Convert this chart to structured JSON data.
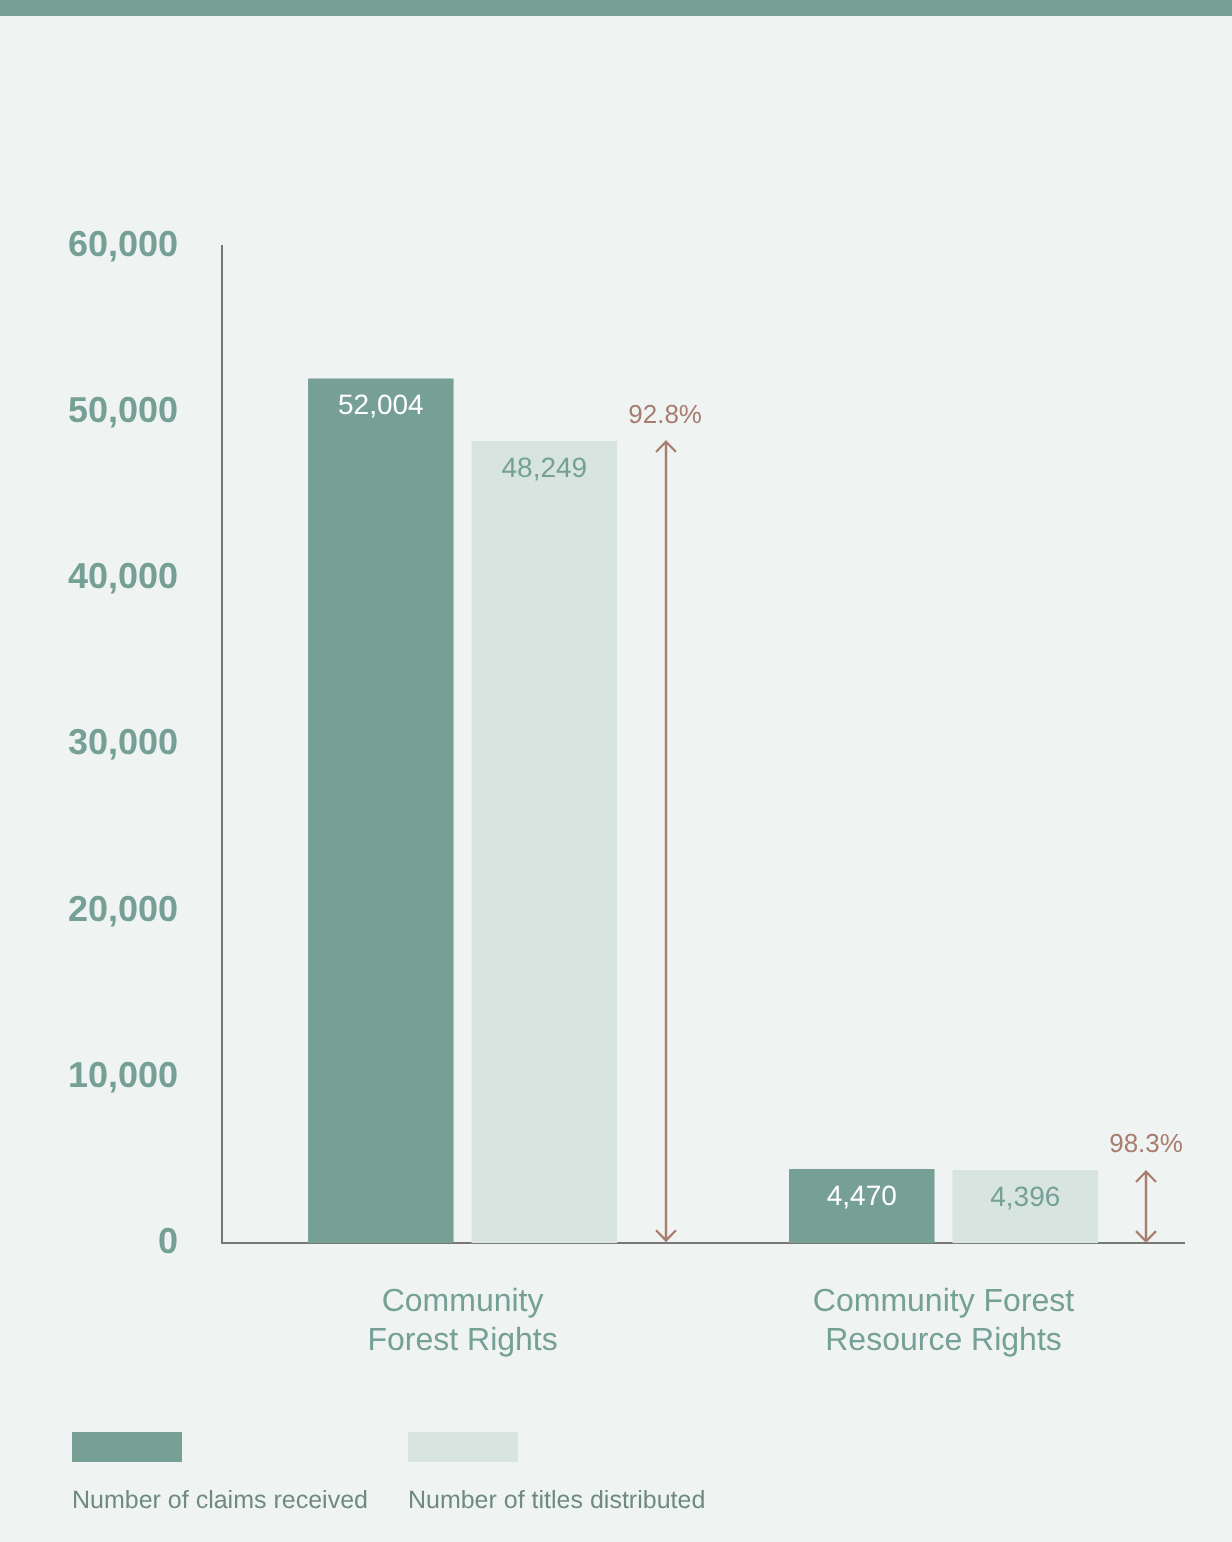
{
  "chart_data": {
    "type": "bar",
    "categories": [
      "Community Forest Rights",
      "Community Forest Resource Rights"
    ],
    "series": [
      {
        "name": "Number of claims received",
        "color": "#76a096",
        "values": [
          52004,
          4470
        ],
        "value_labels": [
          "52,004",
          "4,470"
        ]
      },
      {
        "name": "Number of titles distributed",
        "color": "#d8e4e0",
        "values": [
          48249,
          4396
        ],
        "value_labels": [
          "48,249",
          "4,396"
        ]
      }
    ],
    "ylim": [
      0,
      60000
    ],
    "yticks": [
      0,
      {
        "value": 10000,
        "label": "10,000"
      },
      {
        "value": 20000,
        "label": "20,000"
      },
      {
        "value": 30000,
        "label": "30,000"
      },
      {
        "value": 40000,
        "label": "40,000"
      },
      {
        "value": 50000,
        "label": "50,000"
      },
      {
        "value": 60000,
        "label": "60,000"
      }
    ],
    "grid": false,
    "legend": "bottom",
    "annotations": [
      "92.8%",
      "98.3%"
    ]
  }
}
